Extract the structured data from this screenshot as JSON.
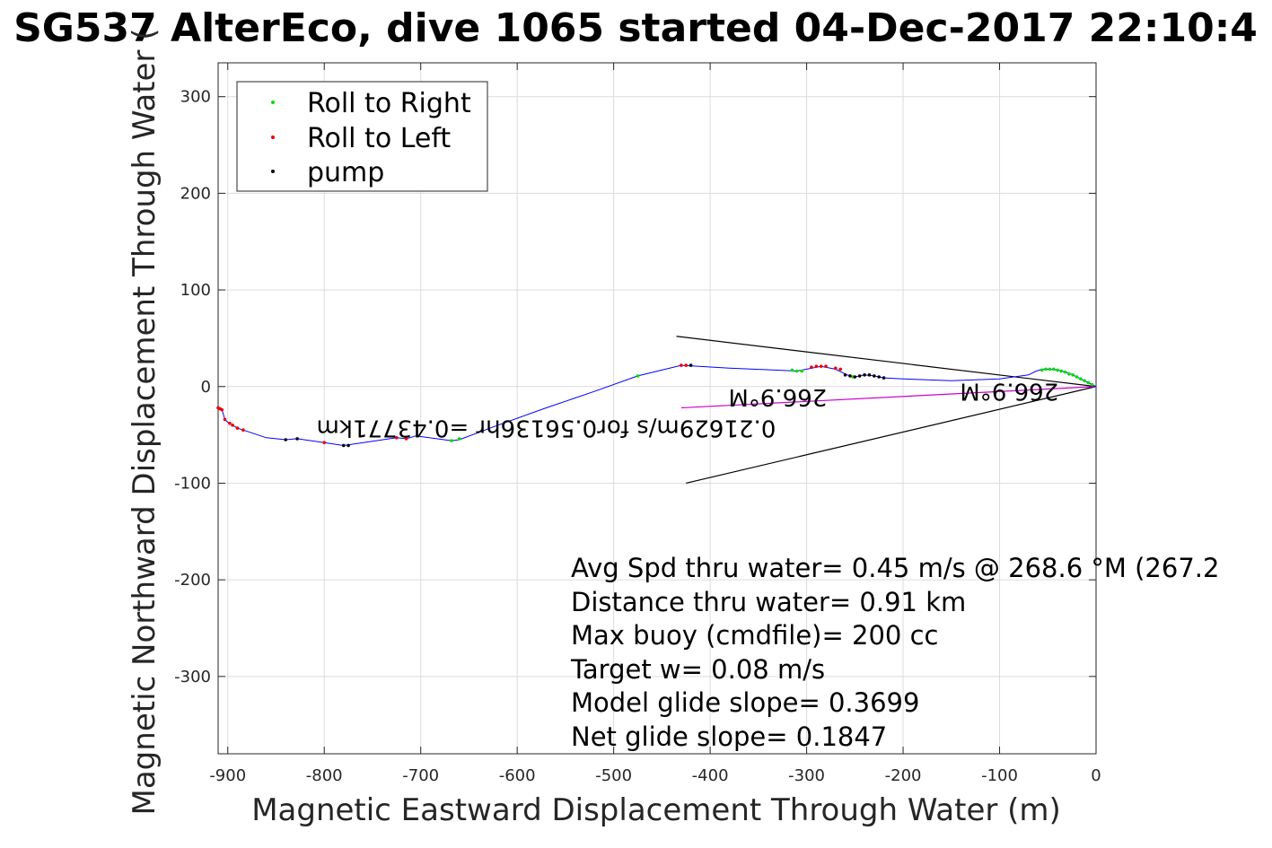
{
  "chart_data": {
    "type": "scatter",
    "title": "SG537 AlterEco, dive 1065 started 04-Dec-2017 22:10:4",
    "xlabel": "Magnetic Eastward Displacement Through Water (m)",
    "ylabel": "Magnetic Northward Displacement Through Water (",
    "xlim": [
      -910,
      0
    ],
    "ylim": [
      -380,
      335
    ],
    "xticks": [
      -900,
      -800,
      -700,
      -600,
      -500,
      -400,
      -300,
      -200,
      -100,
      0
    ],
    "yticks": [
      300,
      200,
      100,
      0,
      -100,
      -200,
      -300
    ],
    "grid": true,
    "legend": {
      "placement": "top-left",
      "entries": [
        "Roll to Right",
        "Roll to Left",
        "pump"
      ]
    },
    "colors": {
      "roll_right": "#00dd00",
      "roll_left": "#ee0000",
      "pump": "#000000",
      "track": "#0000ff",
      "depth_avg": "#cc00cc",
      "lines": "#000000"
    },
    "track": [
      [
        0,
        0
      ],
      [
        -8,
        4
      ],
      [
        -16,
        8
      ],
      [
        -24,
        12
      ],
      [
        -32,
        15
      ],
      [
        -40,
        17
      ],
      [
        -48,
        18
      ],
      [
        -55,
        18
      ],
      [
        -62,
        16
      ],
      [
        -70,
        12
      ],
      [
        -100,
        8
      ],
      [
        -150,
        6
      ],
      [
        -200,
        8
      ],
      [
        -220,
        9
      ],
      [
        -230,
        11
      ],
      [
        -240,
        12
      ],
      [
        -245,
        11
      ],
      [
        -250,
        10
      ],
      [
        -258,
        12
      ],
      [
        -270,
        18
      ],
      [
        -285,
        21
      ],
      [
        -300,
        18
      ],
      [
        -310,
        16
      ],
      [
        -330,
        17
      ],
      [
        -380,
        19
      ],
      [
        -430,
        22
      ],
      [
        -475,
        11
      ],
      [
        -520,
        -5
      ],
      [
        -570,
        -22
      ],
      [
        -620,
        -40
      ],
      [
        -660,
        -55
      ],
      [
        -668,
        -56
      ],
      [
        -705,
        -51
      ],
      [
        -715,
        -54
      ],
      [
        -725,
        -53
      ],
      [
        -780,
        -61
      ],
      [
        -800,
        -58
      ],
      [
        -828,
        -54
      ],
      [
        -840,
        -55
      ],
      [
        -860,
        -53
      ],
      [
        -884,
        -45
      ],
      [
        -890,
        -43
      ],
      [
        -895,
        -40
      ],
      [
        -900,
        -37
      ],
      [
        -903,
        -34
      ],
      [
        -906,
        -24
      ],
      [
        -910,
        -22
      ]
    ],
    "roll_right": [
      [
        -4,
        2
      ],
      [
        -8,
        4
      ],
      [
        -12,
        6
      ],
      [
        -16,
        8
      ],
      [
        -20,
        10
      ],
      [
        -24,
        12
      ],
      [
        -28,
        13
      ],
      [
        -32,
        15
      ],
      [
        -36,
        16
      ],
      [
        -40,
        17
      ],
      [
        -44,
        18
      ],
      [
        -48,
        18
      ],
      [
        -52,
        18
      ],
      [
        -56,
        17
      ],
      [
        -305,
        16
      ],
      [
        -310,
        16
      ],
      [
        -315,
        17
      ],
      [
        -252,
        10
      ],
      [
        -475,
        11
      ],
      [
        -668,
        -56
      ],
      [
        -660,
        -54
      ],
      [
        -884,
        -45
      ]
    ],
    "roll_left": [
      [
        -280,
        21
      ],
      [
        -285,
        21
      ],
      [
        -290,
        21
      ],
      [
        -295,
        20
      ],
      [
        -270,
        19
      ],
      [
        -265,
        18
      ],
      [
        -425,
        22
      ],
      [
        -430,
        22
      ],
      [
        -715,
        -54
      ],
      [
        -725,
        -53
      ],
      [
        -800,
        -58
      ],
      [
        -884,
        -45
      ],
      [
        -890,
        -43
      ],
      [
        -895,
        -40
      ],
      [
        -898,
        -38
      ],
      [
        -903,
        -34
      ],
      [
        -906,
        -24
      ],
      [
        -910,
        -22
      ],
      [
        -908,
        -23
      ]
    ],
    "pump": [
      [
        -220,
        9
      ],
      [
        -225,
        10
      ],
      [
        -230,
        11
      ],
      [
        -235,
        12
      ],
      [
        -240,
        12
      ],
      [
        -245,
        11
      ],
      [
        -250,
        10
      ],
      [
        -255,
        11
      ],
      [
        -260,
        12
      ],
      [
        -420,
        22
      ],
      [
        -780,
        -61
      ],
      [
        -775,
        -61
      ],
      [
        -828,
        -54
      ],
      [
        -840,
        -55
      ]
    ],
    "depth_avg_line": [
      [
        0,
        0
      ],
      [
        -430,
        -22
      ]
    ],
    "heading_lines": [
      [
        [
          0,
          0
        ],
        [
          -435,
          52
        ]
      ],
      [
        [
          0,
          0
        ],
        [
          -425,
          -100
        ]
      ]
    ],
    "annotations": [
      {
        "text": "0.21629m/s for0.56136hr =0.43771km",
        "x": -570,
        "y": -35,
        "rotate": 180
      },
      {
        "text": "266.9°M",
        "x": -330,
        "y": -3,
        "rotate": 180
      },
      {
        "text": "266.9°M",
        "x": -90,
        "y": 3,
        "rotate": 180
      }
    ],
    "stats": [
      "Avg Spd thru water=  0.45 m/s @ 268.6 °M (267.2",
      "Distance thru water=  0.91 km",
      "Max buoy (cmdfile)= 200 cc",
      "Target w= 0.08 m/s",
      "Model glide slope= 0.3699",
      "Net glide slope= 0.1847"
    ]
  }
}
